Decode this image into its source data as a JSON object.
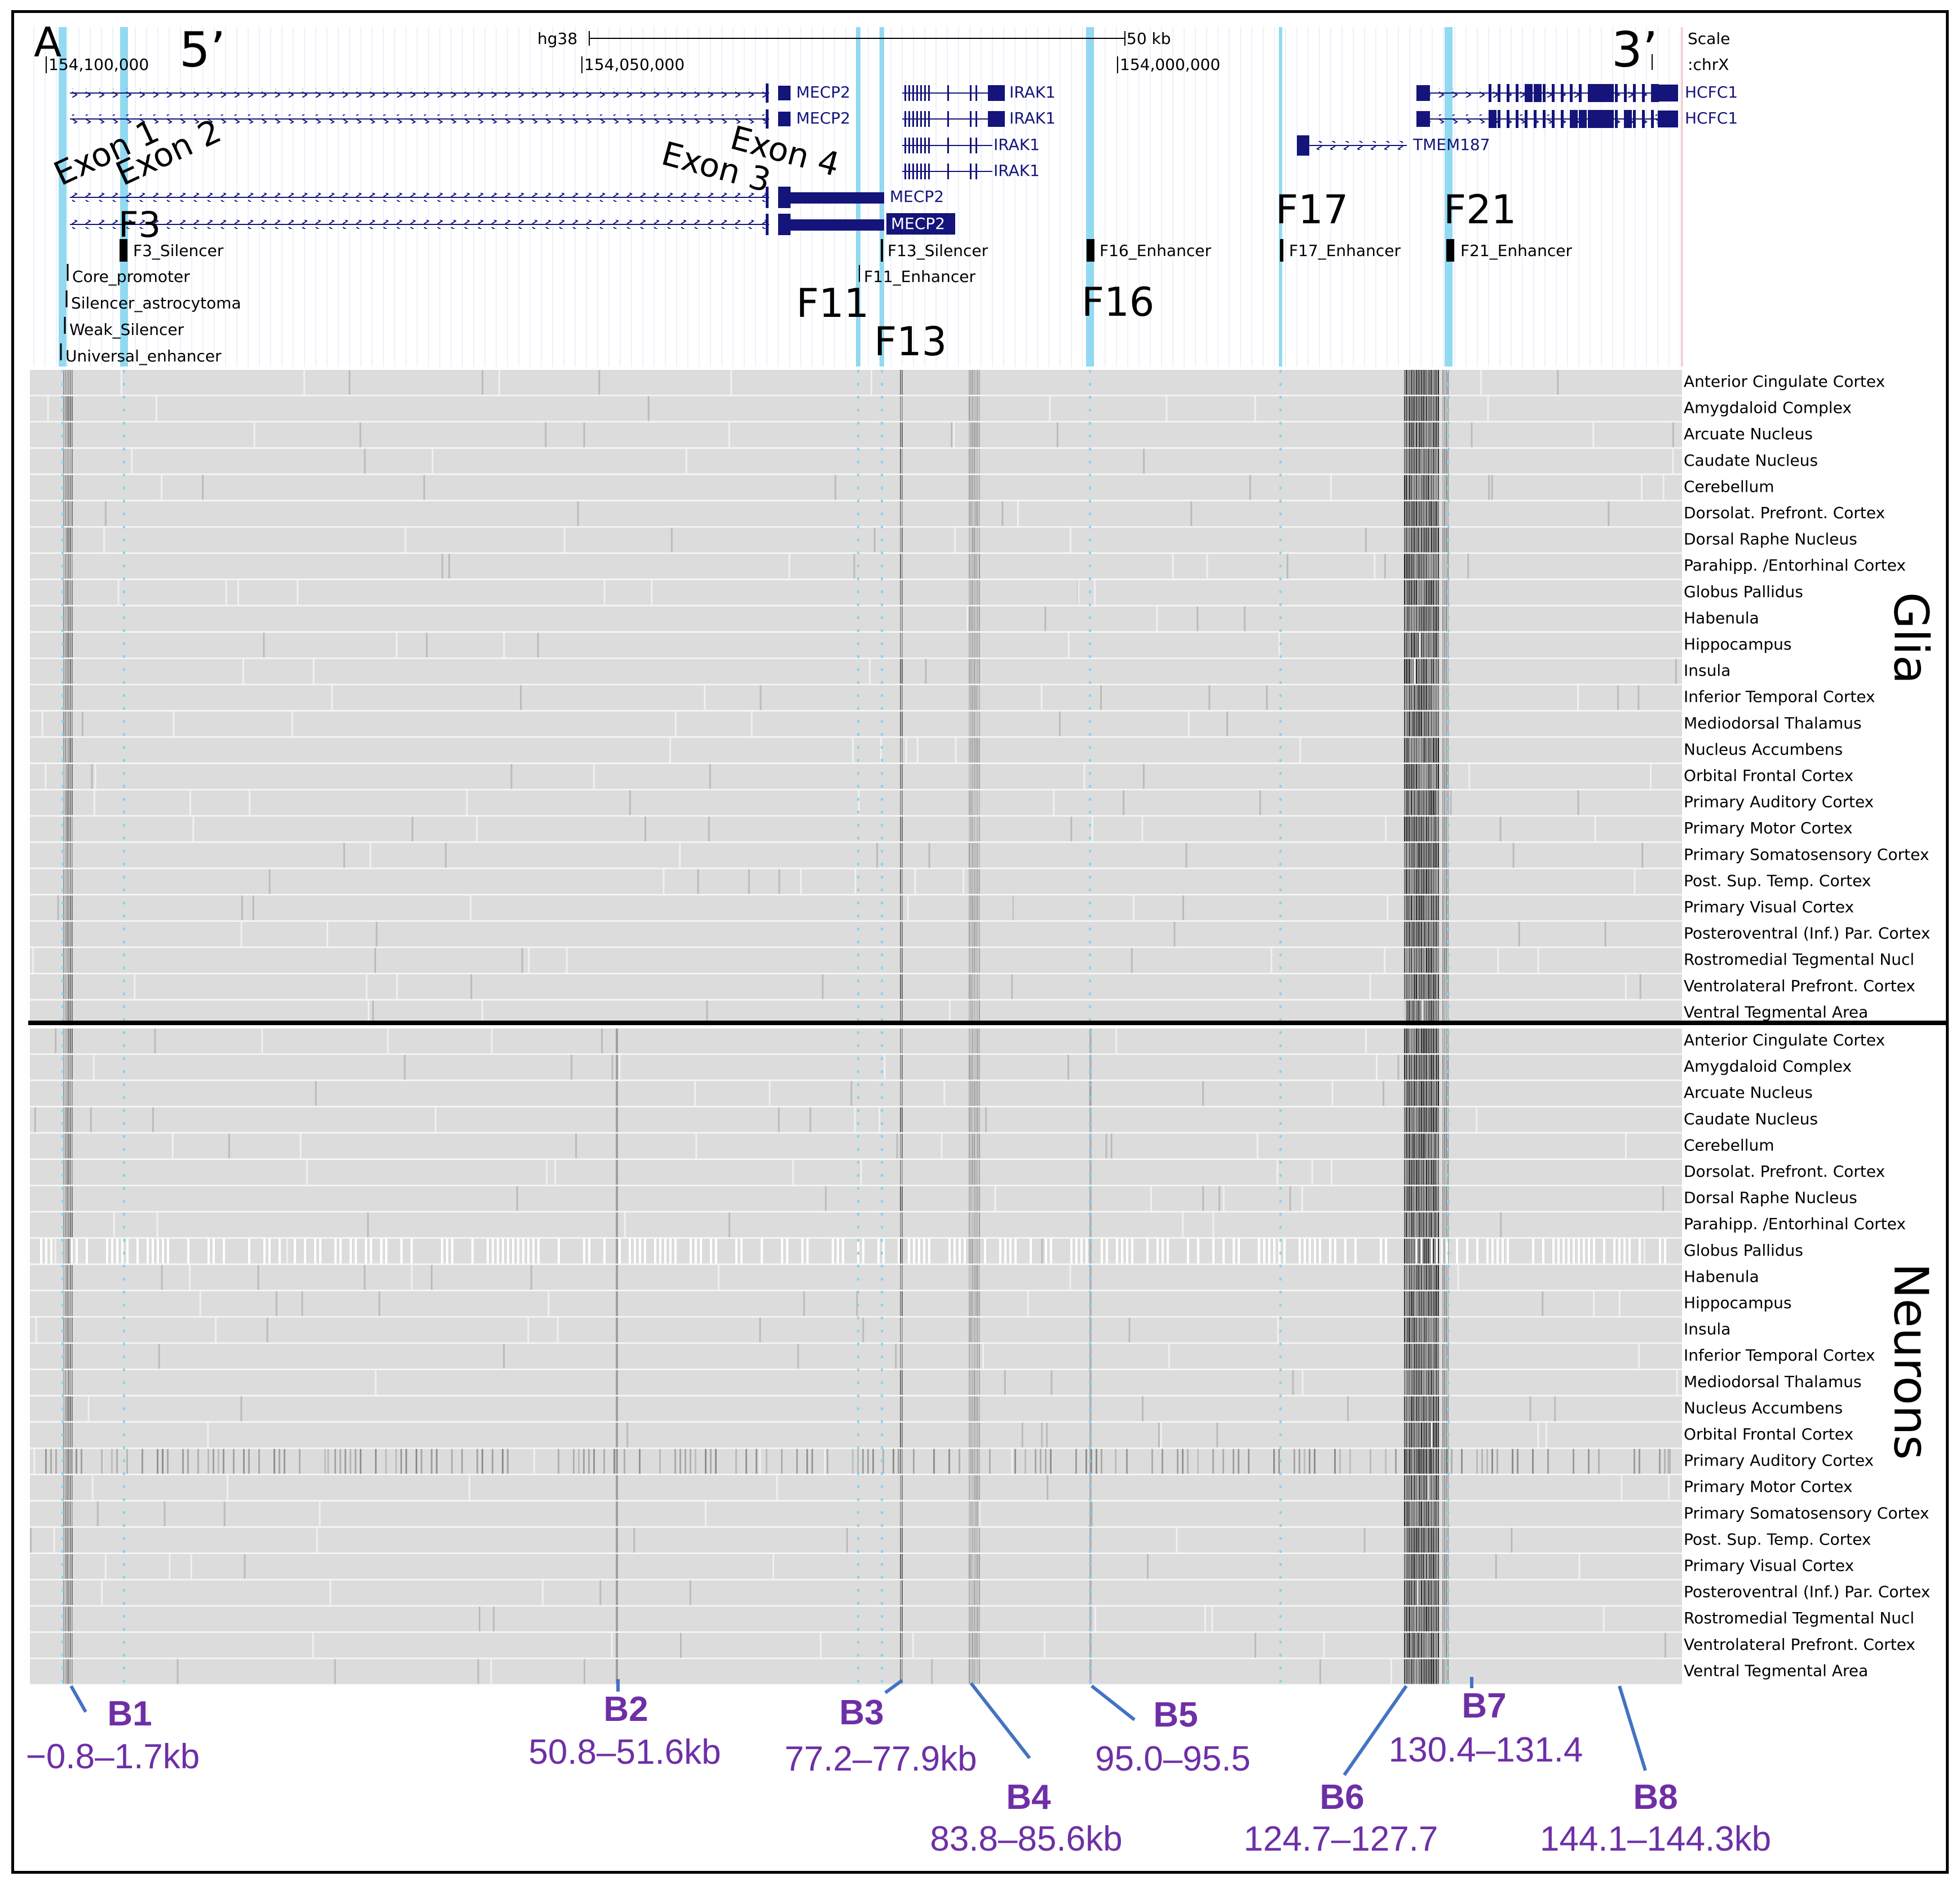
{
  "panel_label": "A",
  "five_prime": "5’",
  "three_prime": "3’",
  "header": {
    "assembly": "hg38",
    "scale_bar": "50 kb",
    "scale_label": "Scale",
    "chrom_label": ":chrX",
    "coords": [
      "154,100,000",
      "154,050,000",
      "154,000,000"
    ]
  },
  "exon_labels": [
    "Exon 1",
    "Exon 2",
    "Exon 3",
    "Exon 4"
  ],
  "genes": [
    {
      "label": "MECP2"
    },
    {
      "label": "MECP2"
    },
    {
      "label": "MECP2"
    },
    {
      "label": "MECP2"
    },
    {
      "label": "IRAK1"
    },
    {
      "label": "IRAK1"
    },
    {
      "label": "IRAK1"
    },
    {
      "label": "IRAK1"
    },
    {
      "label": "HCFC1"
    },
    {
      "label": "HCFC1"
    },
    {
      "label": "TMEM187"
    }
  ],
  "elements": [
    "F3_Silencer",
    "Core_promoter",
    "Silencer_astrocytoma",
    "Weak_Silencer",
    "Universal_enhancer",
    "F13_Silencer",
    "F11_Enhancer",
    "F16_Enhancer",
    "F17_Enhancer",
    "F21_Enhancer"
  ],
  "region_labels": [
    "F3",
    "F11",
    "F13",
    "F16",
    "F17",
    "F21"
  ],
  "glia_title": "Glia",
  "neurons_title": "Neurons",
  "glia_tracks": [
    "Anterior Cingulate Cortex",
    "Amygdaloid Complex",
    "Arcuate Nucleus",
    "Caudate Nucleus",
    "Cerebellum",
    "Dorsolat. Prefront. Cortex",
    "Dorsal Raphe Nucleus",
    "Parahipp. /Entorhinal Cortex",
    "Globus Pallidus",
    "Habenula",
    "Hippocampus",
    "Insula",
    "Inferior Temporal Cortex",
    "Mediodorsal Thalamus",
    "Nucleus Accumbens",
    "Orbital Frontal Cortex",
    "Primary Auditory Cortex",
    "Primary Motor Cortex",
    "Primary Somatosensory Cortex",
    "Post. Sup. Temp. Cortex",
    "Primary Visual Cortex",
    "Posteroventral (Inf.) Par. Cortex",
    "Rostromedial Tegmental Nucl",
    "Ventrolateral Prefront. Cortex",
    "Ventral Tegmental Area"
  ],
  "neuron_tracks": [
    "Anterior Cingulate Cortex",
    "Amygdaloid Complex",
    "Arcuate Nucleus",
    "Caudate Nucleus",
    "Cerebellum",
    "Dorsolat. Prefront. Cortex",
    "Dorsal Raphe Nucleus",
    "Parahipp. /Entorhinal Cortex",
    "Globus Pallidus",
    "Habenula",
    "Hippocampus",
    "Insula",
    "Inferior Temporal Cortex",
    "Mediodorsal Thalamus",
    "Nucleus Accumbens",
    "Orbital Frontal Cortex",
    "Primary Auditory Cortex",
    "Primary Motor Cortex",
    "Primary Somatosensory Cortex",
    "Post. Sup. Temp. Cortex",
    "Primary Visual Cortex",
    "Posteroventral (Inf.) Par. Cortex",
    "Rostromedial Tegmental Nucl",
    "Ventrolateral Prefront. Cortex",
    "Ventral Tegmental Area"
  ],
  "blocks": [
    {
      "name": "B1",
      "range": "−0.8–1.7kb"
    },
    {
      "name": "B2",
      "range": "50.8–51.6kb"
    },
    {
      "name": "B3",
      "range": "77.2–77.9kb"
    },
    {
      "name": "B4",
      "range": "83.8–85.6kb"
    },
    {
      "name": "B5",
      "range": "95.0–95.5"
    },
    {
      "name": "B6",
      "range": "124.7–127.7"
    },
    {
      "name": "B7",
      "range": "130.4–131.4"
    },
    {
      "name": "B8",
      "range": "144.1–144.3kb"
    }
  ],
  "colors": {
    "gene": "#14147a",
    "highlight": "#7fd3ee",
    "track_bg": "#dcdcdc",
    "block_label": "#6e2fa6",
    "pointer": "#4472c4"
  }
}
